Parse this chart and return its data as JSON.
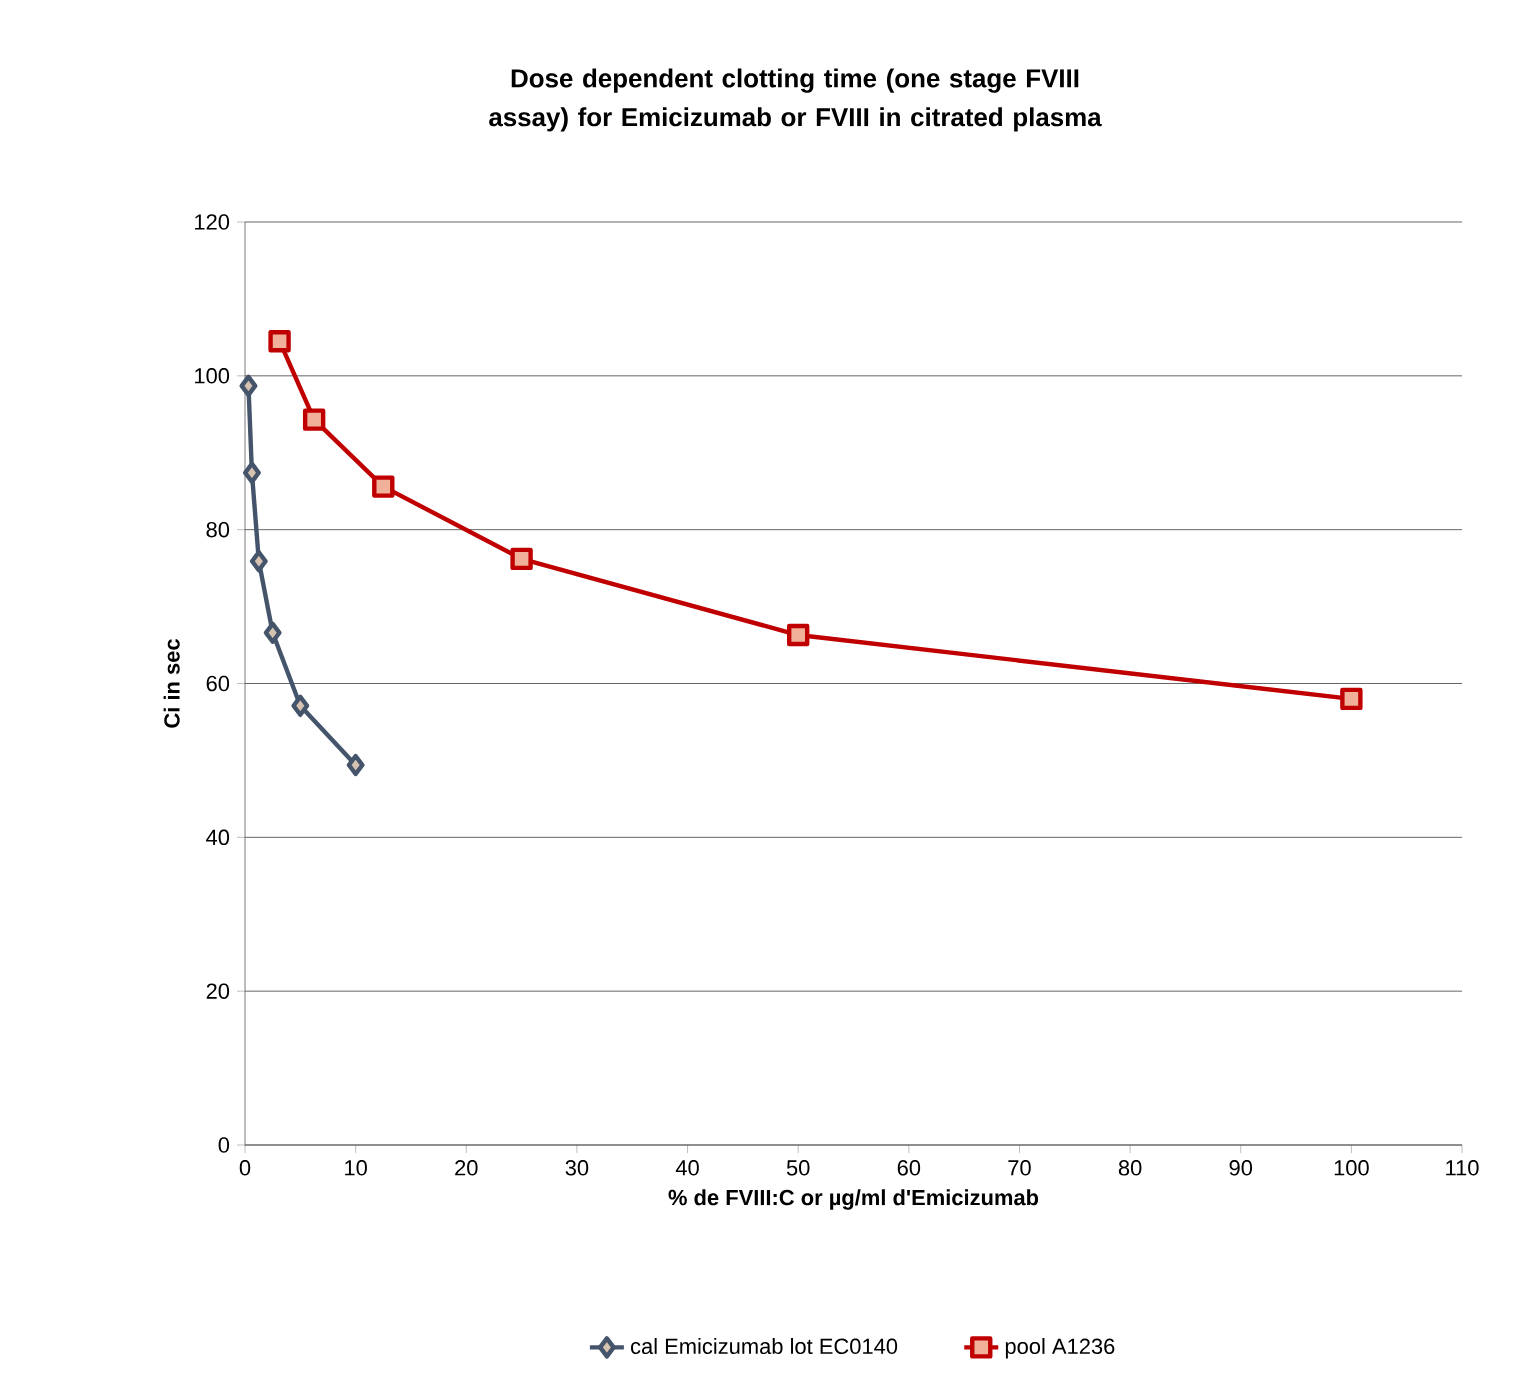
{
  "chart_data": {
    "type": "line",
    "title": "Dose dependent clotting time (one stage FVIII assay) for Emicizumab or FVIII in citrated plasma",
    "xlabel": "% de FVIII:C or µg/ml d'Emicizumab",
    "ylabel": "Ci in sec",
    "series": [
      {
        "name": "cal Emicizumab lot EC0140",
        "color": "#44546a",
        "marker": "diamond",
        "x": [
          0.3125,
          0.625,
          1.25,
          2.5,
          5,
          10
        ],
        "values": [
          98.7,
          87.4,
          75.9,
          66.6,
          57.1,
          49.4
        ]
      },
      {
        "name": "pool A1236",
        "color": "#c00000",
        "marker": "square",
        "x": [
          3.125,
          6.25,
          12.5,
          25,
          50,
          100
        ],
        "values": [
          104.5,
          94.3,
          85.6,
          76.2,
          66.3,
          58.0
        ]
      }
    ],
    "xlim": [
      0,
      110
    ],
    "xticks": [
      0,
      10,
      20,
      30,
      40,
      50,
      60,
      70,
      80,
      90,
      100,
      110
    ],
    "ylim": [
      0,
      120
    ],
    "yticks": [
      0,
      20,
      40,
      60,
      80,
      100,
      120
    ],
    "grid": "y",
    "legend": "bottom"
  }
}
